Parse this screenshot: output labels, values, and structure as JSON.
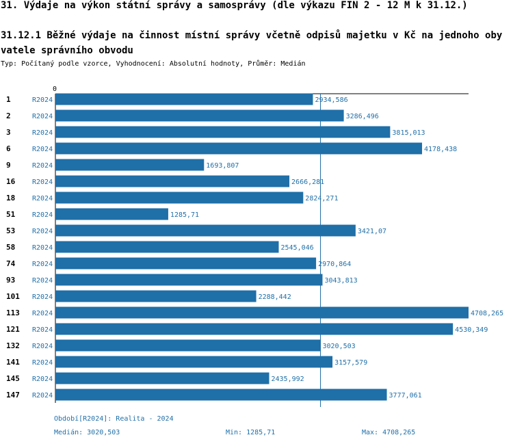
{
  "heading": "31. Výdaje na výkon státní správy a samosprávy (dle výkazu FIN 2 - 12 M k 31.12.)",
  "subheading": "31.12.1 Běžné výdaje na činnost místní správy včetně odpisů majetku v Kč na jednoho obyvatele správního obvodu",
  "description": "Typ: Počítaný podle vzorce, Vyhodnocení: Absolutní hodnoty, Průměr: Medián",
  "colors": {
    "bar": "#1f6fa8",
    "label": "#1f6fa8",
    "text": "#000000"
  },
  "chart_data": {
    "type": "bar",
    "orientation": "horizontal",
    "axis_origin_label": "0",
    "categories": [
      "1",
      "2",
      "3",
      "6",
      "9",
      "16",
      "18",
      "51",
      "53",
      "58",
      "74",
      "93",
      "101",
      "113",
      "121",
      "132",
      "141",
      "145",
      "147"
    ],
    "series_labels": [
      "R2024",
      "R2024",
      "R2024",
      "R2024",
      "R2024",
      "R2024",
      "R2024",
      "R2024",
      "R2024",
      "R2024",
      "R2024",
      "R2024",
      "R2024",
      "R2024",
      "R2024",
      "R2024",
      "R2024",
      "R2024",
      "R2024"
    ],
    "value_labels": [
      "2934,586",
      "3286,496",
      "3815,013",
      "4178,438",
      "1693,807",
      "2666,281",
      "2824,271",
      "1285,71",
      "3421,07",
      "2545,046",
      "2970,864",
      "3043,813",
      "2288,442",
      "4708,265",
      "4530,349",
      "3020,503",
      "3157,579",
      "2435,992",
      "3777,061"
    ],
    "values": [
      2934.586,
      3286.496,
      3815.013,
      4178.438,
      1693.807,
      2666.281,
      2824.271,
      1285.71,
      3421.07,
      2545.046,
      2970.864,
      3043.813,
      2288.442,
      4708.265,
      4530.349,
      3020.503,
      3157.579,
      2435.992,
      3777.061
    ],
    "median": 3020.503,
    "xlim": [
      0,
      4708.265
    ]
  },
  "footer": {
    "period": "Období[R2024]: Realita - 2024",
    "median": "Medián: 3020,503",
    "min": "Min: 1285,71",
    "max": "Max: 4708,265"
  }
}
